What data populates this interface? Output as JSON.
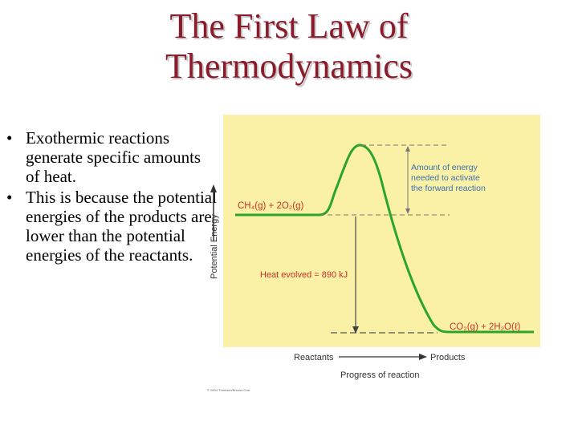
{
  "slide": {
    "title_line1": "The First Law of",
    "title_line2": "Thermodynamics",
    "bullets": [
      "Exothermic reactions generate specific amounts of heat.",
      "This is because the potential energies of the products are lower than the potential energies of the reactants."
    ]
  },
  "diagram": {
    "reactants_label": "CH₄(g) + 2O₂(g)",
    "products_label": "CO₂(g) + 2H₂O(ℓ)",
    "activation_label_1": "Amount of energy",
    "activation_label_2": "needed to activate",
    "activation_label_3": "the forward reaction",
    "heat_label": "Heat evolved = 890 kJ",
    "y_axis_label": "Potential Energy",
    "x_axis_left": "Reactants",
    "x_axis_right": "Products",
    "x_axis_caption": "Progress of reaction",
    "copyright": "© 2004 Thomson/Brooks Cole",
    "colors": {
      "panel_bg": "#fbf1a6",
      "curve": "#2aa52a",
      "label_blue": "#3a6fb0",
      "label_red": "#c8322a",
      "title": "#8b1a2b"
    }
  }
}
